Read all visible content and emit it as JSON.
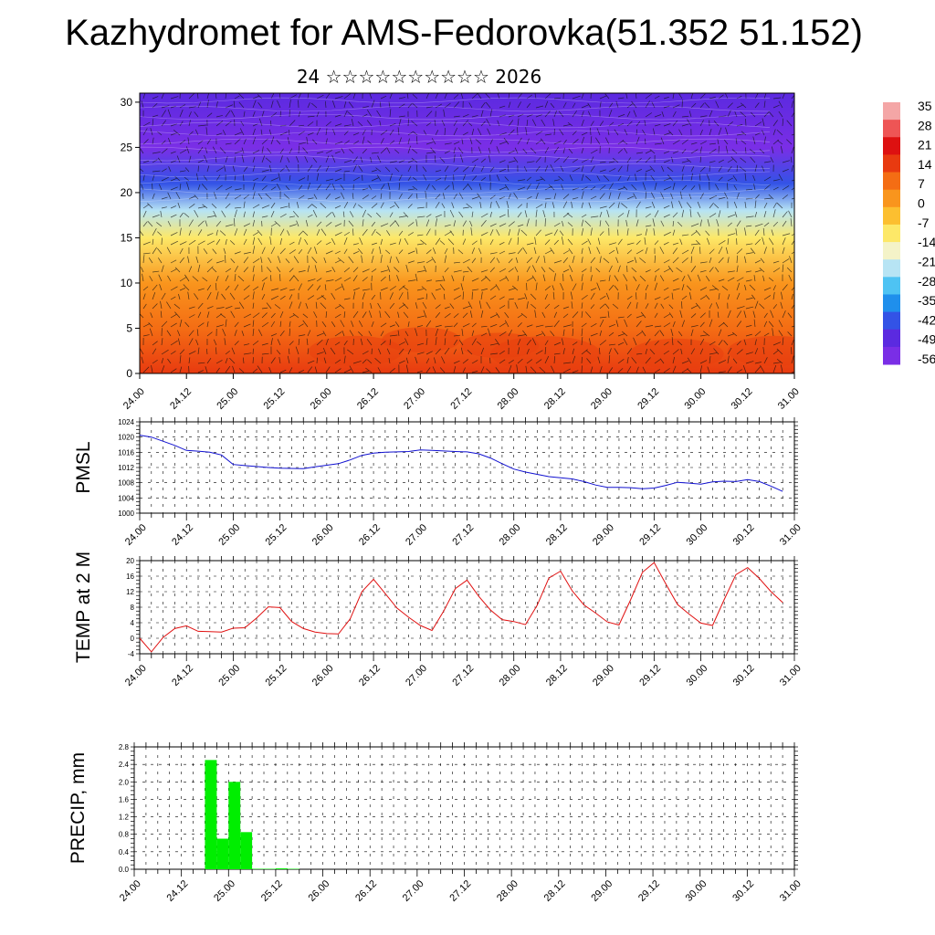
{
  "title": "Kazhydromet for AMS-Fedorovka(51.352 51.152)",
  "subtitle": "24 ☆☆☆☆☆☆☆☆☆☆ 2026",
  "time_ticks": [
    "24.00",
    "24.12",
    "25.00",
    "25.12",
    "26.00",
    "26.12",
    "27.00",
    "27.12",
    "28.00",
    "28.12",
    "29.00",
    "29.12",
    "30.00",
    "30.12",
    "31.00"
  ],
  "colorbar": {
    "labels": [
      "35",
      "28",
      "21",
      "14",
      "7",
      "0",
      "-7",
      "-14",
      "-21",
      "-28",
      "-35",
      "-42",
      "-49",
      "-56"
    ],
    "colors": [
      "#f4a6a6",
      "#ee5555",
      "#dd1111",
      "#e83a10",
      "#f46d14",
      "#f9951d",
      "#fcbf30",
      "#fde868",
      "#f4f3c8",
      "#b7e4f4",
      "#4ec3f3",
      "#1f8fec",
      "#3353e6",
      "#5b2ae0",
      "#7a2ee6"
    ]
  },
  "chart_data": [
    {
      "type": "heatmap",
      "title": "",
      "xlabel": "",
      "ylabel": "",
      "x_ticks": [
        "24.00",
        "24.12",
        "25.00",
        "25.12",
        "26.00",
        "26.12",
        "27.00",
        "27.12",
        "28.00",
        "28.12",
        "29.00",
        "29.12",
        "30.00",
        "30.12",
        "31.00"
      ],
      "y_ticks": [
        0,
        5,
        10,
        15,
        20,
        25,
        30
      ],
      "ylim": [
        0,
        31
      ],
      "colorbar_range": [
        -56,
        35
      ],
      "description_levels": [
        {
          "y": 0,
          "value": 14
        },
        {
          "y": 5,
          "value": 10
        },
        {
          "y": 10,
          "value": 5
        },
        {
          "y": 15,
          "value": -10
        },
        {
          "y": 18,
          "value": -25
        },
        {
          "y": 21,
          "value": -45
        },
        {
          "y": 25,
          "value": -56
        },
        {
          "y": 31,
          "value": -50
        }
      ]
    },
    {
      "type": "line",
      "title": "",
      "ylabel": "PMSL",
      "x_ticks": [
        "24.00",
        "24.12",
        "25.00",
        "25.12",
        "26.00",
        "26.12",
        "27.00",
        "27.12",
        "28.00",
        "28.12",
        "29.00",
        "29.12",
        "30.00",
        "30.12",
        "31.00"
      ],
      "y_ticks": [
        1000,
        1004,
        1008,
        1012,
        1016,
        1020,
        1024
      ],
      "ylim": [
        1000,
        1024
      ],
      "x": [
        0,
        0.25,
        0.75,
        1,
        1.25,
        1.5,
        1.75,
        2,
        2.25,
        2.75,
        3,
        3.5,
        3.75,
        4,
        4.25,
        4.5,
        4.75,
        5,
        5.25,
        5.75,
        6,
        6.25,
        6.75,
        7,
        7.25,
        7.5,
        7.75,
        8,
        8.25,
        8.5,
        8.75,
        9,
        9.25,
        9.5,
        9.75,
        10,
        10.25,
        10.5,
        10.75,
        11,
        11.25,
        11.5,
        11.75,
        12,
        12.25,
        12.5,
        12.75,
        13,
        13.25,
        13.5,
        13.75
      ],
      "values": [
        1020.5,
        1020,
        1017.8,
        1016.5,
        1016.3,
        1016,
        1015.3,
        1012.8,
        1012.5,
        1012,
        1011.8,
        1011.7,
        1012.2,
        1012.6,
        1013,
        1014,
        1015.2,
        1015.8,
        1016,
        1016.2,
        1016.6,
        1016.5,
        1016.2,
        1016.1,
        1015.6,
        1014.5,
        1013,
        1011.6,
        1010.8,
        1010.2,
        1009.6,
        1009.3,
        1009,
        1008.3,
        1007.4,
        1006.8,
        1006.8,
        1006.7,
        1006.4,
        1006.6,
        1007.3,
        1008.1,
        1007.9,
        1007.6,
        1008.2,
        1008.4,
        1008.3,
        1008.8,
        1008.3,
        1007.1,
        1005.7
      ]
    },
    {
      "type": "line",
      "title": "",
      "ylabel": "TEMP at 2 M",
      "x_ticks": [
        "24.00",
        "24.12",
        "25.00",
        "25.12",
        "26.00",
        "26.12",
        "27.00",
        "27.12",
        "28.00",
        "28.12",
        "29.00",
        "29.12",
        "30.00",
        "30.12",
        "31.00"
      ],
      "y_ticks": [
        -4,
        0,
        4,
        8,
        12,
        16,
        20
      ],
      "ylim": [
        -4,
        20
      ],
      "x": [
        0,
        0.25,
        0.5,
        0.75,
        1,
        1.25,
        1.5,
        1.75,
        2,
        2.25,
        2.5,
        2.75,
        3,
        3.25,
        3.5,
        3.75,
        4,
        4.25,
        4.5,
        4.75,
        5,
        5.25,
        5.5,
        5.75,
        6,
        6.25,
        6.5,
        6.75,
        7,
        7.25,
        7.5,
        7.75,
        8,
        8.25,
        8.5,
        8.75,
        9,
        9.25,
        9.5,
        9.75,
        10,
        10.25,
        10.5,
        10.75,
        11,
        11.25,
        11.5,
        11.75,
        12,
        12.25,
        12.5,
        12.75,
        13,
        13.25,
        13.5,
        13.75
      ],
      "values": [
        0,
        -3.5,
        0.2,
        2.5,
        3.2,
        1.8,
        1.7,
        1.6,
        2.6,
        2.7,
        5.2,
        8.1,
        7.9,
        4.3,
        2.5,
        1.6,
        1.2,
        1.1,
        5.0,
        12.0,
        15.2,
        11.5,
        7.8,
        5.4,
        3.3,
        2.0,
        7.0,
        12.8,
        15.0,
        10.8,
        7.3,
        4.8,
        4.3,
        3.5,
        8.5,
        15.5,
        17.3,
        12.2,
        8.6,
        6.5,
        4.2,
        3.4,
        10.0,
        17.0,
        19.5,
        14.0,
        8.7,
        6.2,
        3.9,
        3.3,
        10.0,
        16.4,
        18.2,
        15.4,
        12.0,
        9.2
      ]
    },
    {
      "type": "bar",
      "title": "",
      "ylabel": "PRECIP, mm",
      "x_ticks": [
        "24.00",
        "24.12",
        "25.00",
        "25.12",
        "26.00",
        "26.12",
        "27.00",
        "27.12",
        "28.00",
        "28.12",
        "29.00",
        "29.12",
        "30.00",
        "30.12",
        "31.00"
      ],
      "y_ticks": [
        0.0,
        0.4,
        0.8,
        1.2,
        1.6,
        2.0,
        2.4,
        2.8
      ],
      "ylim": [
        0,
        2.8
      ],
      "x_start": [
        1.5,
        1.75,
        2,
        2.25,
        2.5,
        2.75,
        3,
        3.25,
        3.5
      ],
      "values": [
        2.5,
        0.7,
        2.0,
        0.85,
        0.01,
        0.01,
        0.02,
        0.01,
        0.0
      ]
    }
  ]
}
